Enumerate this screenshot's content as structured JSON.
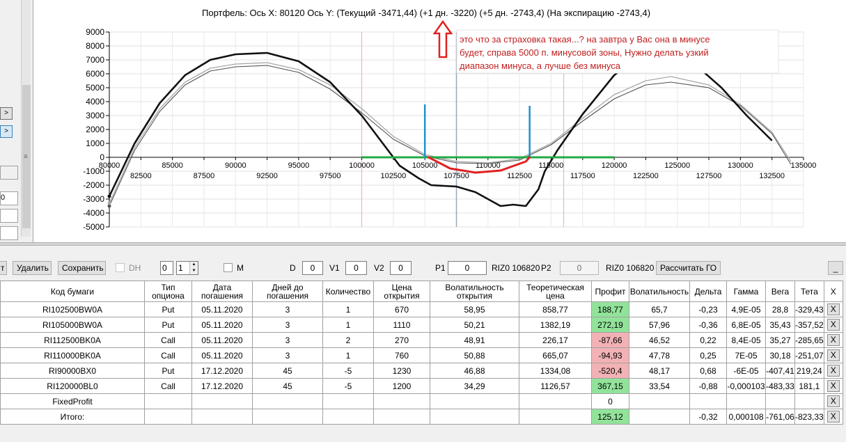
{
  "chart_header": {
    "text": "Портфель: Ось X: 80120 Ось Y:  (Текущий -3471,44)  (+1 дн. -3220)  (+5 дн. -2743,4)  (На экспирацию -2743,4)"
  },
  "annotation": {
    "text": "это что за страховка такая...? на завтра у Вас она в минусе будет, справа 5000 п. минусовой зоны, Нужно делать узкий диапазон минуса, а лучше без минуса"
  },
  "colors": {
    "annotation_text": "#c02020",
    "arrow": "#e02020",
    "green_line": "#22aa44",
    "blue_line": "#1e90d0",
    "red_curve": "#e02020",
    "profit_positive": "#92e39a",
    "profit_negative": "#f2b2b5"
  },
  "chart_data": {
    "type": "line",
    "title": "",
    "xlim": [
      80000,
      135000
    ],
    "ylim": [
      -5000,
      9000
    ],
    "y_ticks": [
      9000,
      8000,
      7000,
      6000,
      5000,
      4000,
      3000,
      2000,
      1000,
      0,
      -1000,
      -2000,
      -3000,
      -4000,
      -5000
    ],
    "x_ticks_upper": [
      80000,
      85000,
      90000,
      95000,
      100000,
      105000,
      110000,
      115000,
      120000,
      125000,
      130000,
      135000
    ],
    "x_ticks_lower": [
      82500,
      87500,
      92500,
      97500,
      102500,
      107500,
      112500,
      117500,
      122500,
      127500,
      132500
    ],
    "grid": true,
    "current_x": 107500,
    "pink_verticals": [
      100000,
      116000
    ],
    "series": [
      {
        "style": "thick-black",
        "points": [
          [
            80000,
            -2800
          ],
          [
            82000,
            1000
          ],
          [
            84000,
            3900
          ],
          [
            86000,
            5900
          ],
          [
            88000,
            7000
          ],
          [
            90000,
            7400
          ],
          [
            92500,
            7500
          ],
          [
            95000,
            6900
          ],
          [
            97500,
            5400
          ],
          [
            100000,
            3000
          ],
          [
            102500,
            0
          ],
          [
            103000,
            -600
          ],
          [
            104500,
            -1500
          ],
          [
            105500,
            -2000
          ],
          [
            107500,
            -2100
          ],
          [
            109000,
            -2500
          ],
          [
            110000,
            -3000
          ],
          [
            111000,
            -3500
          ],
          [
            112000,
            -3400
          ],
          [
            113000,
            -3500
          ],
          [
            114000,
            -2300
          ],
          [
            114500,
            -1000
          ],
          [
            115500,
            500
          ],
          [
            117500,
            3100
          ],
          [
            120000,
            5900
          ],
          [
            121500,
            6900
          ],
          [
            123000,
            7400
          ],
          [
            124500,
            7400
          ],
          [
            126500,
            6600
          ],
          [
            128500,
            5000
          ],
          [
            130500,
            3000
          ],
          [
            132500,
            1200
          ]
        ]
      },
      {
        "style": "thin-gray",
        "points": [
          [
            80000,
            -3300
          ],
          [
            82000,
            700
          ],
          [
            84000,
            3500
          ],
          [
            86000,
            5400
          ],
          [
            88000,
            6400
          ],
          [
            90000,
            6700
          ],
          [
            92500,
            6800
          ],
          [
            95000,
            6300
          ],
          [
            97500,
            5200
          ],
          [
            100000,
            3500
          ],
          [
            102500,
            1500
          ],
          [
            105000,
            200
          ],
          [
            107500,
            -300
          ],
          [
            110000,
            -400
          ],
          [
            112500,
            -100
          ],
          [
            115000,
            1000
          ],
          [
            117500,
            2800
          ],
          [
            120000,
            4500
          ],
          [
            122500,
            5500
          ],
          [
            124500,
            5800
          ],
          [
            127500,
            5200
          ],
          [
            130000,
            3800
          ],
          [
            132500,
            1800
          ],
          [
            134000,
            -300
          ]
        ]
      },
      {
        "style": "thin-dark",
        "points": [
          [
            80000,
            -3500
          ],
          [
            82000,
            500
          ],
          [
            84000,
            3300
          ],
          [
            86000,
            5200
          ],
          [
            88000,
            6200
          ],
          [
            90000,
            6500
          ],
          [
            92500,
            6600
          ],
          [
            95000,
            6100
          ],
          [
            97500,
            4900
          ],
          [
            100000,
            3200
          ],
          [
            102500,
            1300
          ],
          [
            105000,
            100
          ],
          [
            107500,
            -400
          ],
          [
            110000,
            -450
          ],
          [
            112500,
            -200
          ],
          [
            115000,
            900
          ],
          [
            117500,
            2600
          ],
          [
            120000,
            4200
          ],
          [
            122500,
            5200
          ],
          [
            124500,
            5400
          ],
          [
            127500,
            5000
          ],
          [
            130000,
            3700
          ],
          [
            132500,
            1700
          ],
          [
            134000,
            -500
          ]
        ]
      }
    ],
    "green_segment": {
      "x": [
        100000,
        120000
      ],
      "y": 0
    },
    "blue_lines": [
      {
        "x": 105000,
        "top": 3800
      },
      {
        "x": 113300,
        "top": 3700
      }
    ],
    "red_curve": {
      "points": [
        [
          105300,
          0
        ],
        [
          107000,
          -800
        ],
        [
          109000,
          -1100
        ],
        [
          111000,
          -950
        ],
        [
          113000,
          -300
        ],
        [
          113300,
          0
        ]
      ]
    }
  },
  "toolbar": {
    "partial_button": "т",
    "delete_button": "Удалить",
    "save_button": "Сохранить",
    "dh_label": "DH",
    "spin1_value": "0",
    "spin2_value": "1",
    "m_label": "M",
    "d_label": "D",
    "d_value": "0",
    "v1_label": "V1",
    "v1_value": "0",
    "v2_label": "V2",
    "v2_value": "0",
    "p1_label": "P1",
    "p1_value": "0",
    "riz_label_1": "RIZ0 106820",
    "p2_label": "P2",
    "p2_value": "0",
    "riz_label_2": "RIZ0 106820",
    "calc_button": "Рассчитать ГО",
    "minimize_button": "_"
  },
  "table": {
    "headers": [
      "Код бумаги",
      "Тип опциона",
      "Дата погашения",
      "Дней до погашения",
      "Количество",
      "Цена открытия",
      "Волатильность открытия",
      "Теоретическая цена",
      "Профит",
      "Волатильность",
      "Дельта",
      "Гамма",
      "Вега",
      "Тета",
      "X"
    ],
    "rows": [
      {
        "code": "RI102500BW0A",
        "type": "Put",
        "date": "05.11.2020",
        "days": "3",
        "qty": "1",
        "price": "670",
        "vol_open": "58,95",
        "theo": "858,77",
        "profit": "188,77",
        "profit_sign": "pos",
        "vol": "65,7",
        "delta": "-0,23",
        "gamma": "4,9E-05",
        "vega": "28,8",
        "theta": "-329,43",
        "x": "X"
      },
      {
        "code": "RI105000BW0A",
        "type": "Put",
        "date": "05.11.2020",
        "days": "3",
        "qty": "1",
        "price": "1110",
        "vol_open": "50,21",
        "theo": "1382,19",
        "profit": "272,19",
        "profit_sign": "pos",
        "vol": "57,96",
        "delta": "-0,36",
        "gamma": "6,8E-05",
        "vega": "35,43",
        "theta": "-357,52",
        "x": "X"
      },
      {
        "code": "RI112500BK0A",
        "type": "Call",
        "date": "05.11.2020",
        "days": "3",
        "qty": "2",
        "price": "270",
        "vol_open": "48,91",
        "theo": "226,17",
        "profit": "-87,66",
        "profit_sign": "neg",
        "vol": "46,52",
        "delta": "0,22",
        "gamma": "8,4E-05",
        "vega": "35,27",
        "theta": "-285,65",
        "x": "X"
      },
      {
        "code": "RI110000BK0A",
        "type": "Call",
        "date": "05.11.2020",
        "days": "3",
        "qty": "1",
        "price": "760",
        "vol_open": "50,88",
        "theo": "665,07",
        "profit": "-94,93",
        "profit_sign": "neg",
        "vol": "47,78",
        "delta": "0,25",
        "gamma": "7E-05",
        "vega": "30,18",
        "theta": "-251,07",
        "x": "X"
      },
      {
        "code": "RI90000BX0",
        "type": "Put",
        "date": "17.12.2020",
        "days": "45",
        "qty": "-5",
        "price": "1230",
        "vol_open": "46,88",
        "theo": "1334,08",
        "profit": "-520,4",
        "profit_sign": "neg",
        "vol": "48,17",
        "delta": "0,68",
        "gamma": "-6E-05",
        "vega": "-407,41",
        "theta": "219,24",
        "x": "X"
      },
      {
        "code": "RI120000BL0",
        "type": "Call",
        "date": "17.12.2020",
        "days": "45",
        "qty": "-5",
        "price": "1200",
        "vol_open": "34,29",
        "theo": "1126,57",
        "profit": "367,15",
        "profit_sign": "pos",
        "vol": "33,54",
        "delta": "-0,88",
        "gamma": "-0,000103",
        "vega": "-483,33",
        "theta": "181,1",
        "x": "X"
      }
    ],
    "fixed_profit": {
      "label": "FixedProfit",
      "profit": "0",
      "x": "X"
    },
    "total": {
      "label": "Итого:",
      "profit": "125,12",
      "delta": "-0,32",
      "gamma": "0,000108",
      "vega": "-761,06",
      "theta": "-823,33",
      "x": "X"
    }
  }
}
